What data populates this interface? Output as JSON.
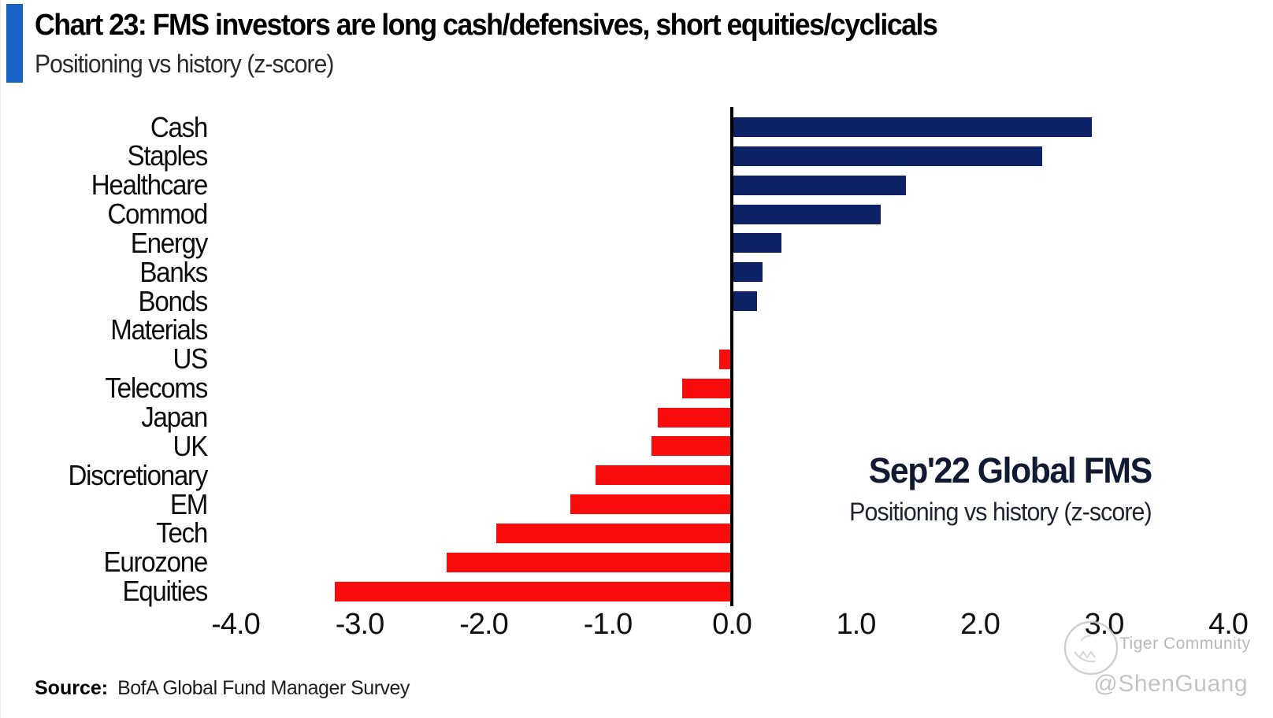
{
  "header": {
    "title": "Chart 23: FMS investors are long cash/defensives, short equities/cyclicals",
    "subtitle": "Positioning vs history (z-score)",
    "accent_color": "#1763c6"
  },
  "chart_data": {
    "type": "bar",
    "orientation": "horizontal",
    "title": "Chart 23: FMS investors are long cash/defensives, short equities/cyclicals",
    "subtitle": "Positioning vs history (z-score)",
    "categories": [
      "Cash",
      "Staples",
      "Healthcare",
      "Commod",
      "Energy",
      "Banks",
      "Bonds",
      "Materials",
      "US",
      "Telecoms",
      "Japan",
      "UK",
      "Discretionary",
      "EM",
      "Tech",
      "Eurozone",
      "Equities"
    ],
    "values": [
      2.9,
      2.5,
      1.4,
      1.2,
      0.4,
      0.25,
      0.2,
      0.0,
      -0.1,
      -0.4,
      -0.6,
      -0.65,
      -1.1,
      -1.3,
      -1.9,
      -2.3,
      -3.2
    ],
    "xlabel": "",
    "ylabel": "",
    "xlim": [
      -4.0,
      4.0
    ],
    "x_ticks": [
      "-4.0",
      "-3.0",
      "-2.0",
      "-1.0",
      "0.0",
      "1.0",
      "2.0",
      "3.0",
      "4.0"
    ],
    "grid": false,
    "legend": false,
    "positive_color": "#0d2167",
    "negative_color": "#fb0c0c",
    "annotation": {
      "line1": "Sep'22 Global FMS",
      "line2": "Positioning vs history (z-score)"
    }
  },
  "source": {
    "label": "Source:",
    "text": "BofA Global Fund Manager Survey"
  },
  "watermark": {
    "logo": "tiger-logo-icon",
    "community": "Tiger Community",
    "handle": "@ShenGuang"
  }
}
